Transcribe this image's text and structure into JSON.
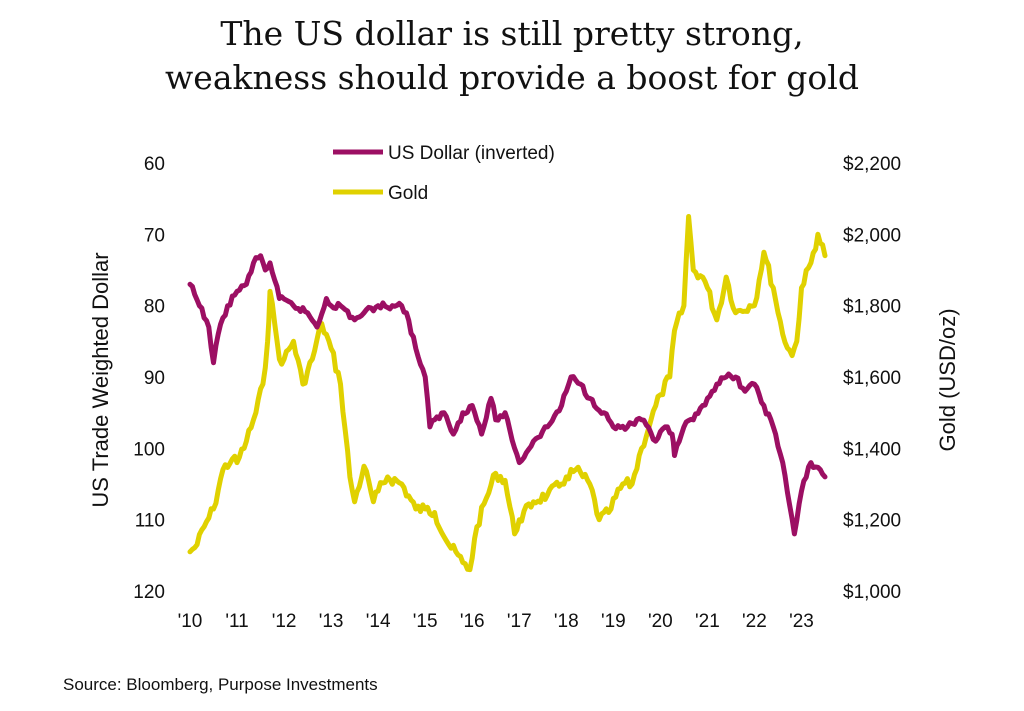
{
  "title": {
    "line1": "The US dollar is still pretty strong,",
    "line2": "weakness should provide a boost for gold"
  },
  "source": "Source: Bloomberg, Purpose Investments",
  "colors": {
    "usd": "#9c0f63",
    "gold": "#e0d100"
  },
  "chart_data": {
    "type": "line",
    "title": "",
    "xlabel": "",
    "ylabel_left": "US Trade Weighted Dollar",
    "ylabel_right": "Gold (USD/oz)",
    "left_axis": {
      "min": 60,
      "max": 120,
      "inverted": true,
      "ticks": [
        "60",
        "70",
        "80",
        "90",
        "100",
        "110",
        "120"
      ]
    },
    "right_axis": {
      "min": 1000,
      "max": 2200,
      "ticks": [
        "$2,200",
        "$2,000",
        "$1,800",
        "$1,600",
        "$1,400",
        "$1,200",
        "$1,000"
      ]
    },
    "x_ticks": [
      "'10",
      "'11",
      "'12",
      "'13",
      "'14",
      "'15",
      "'16",
      "'17",
      "'18",
      "'19",
      "'20",
      "'21",
      "'22",
      "'23"
    ],
    "x_range": [
      2010.0,
      2023.5
    ],
    "legend": [
      "US Dollar (inverted)",
      "Gold"
    ],
    "legend_position": "top-center",
    "grid": false,
    "series": [
      {
        "name": "US Dollar (inverted)",
        "axis": "left",
        "x": [
          2010.0,
          2010.2,
          2010.4,
          2010.5,
          2010.6,
          2010.8,
          2011.0,
          2011.2,
          2011.35,
          2011.5,
          2011.6,
          2011.7,
          2011.9,
          2012.2,
          2012.5,
          2012.7,
          2012.9,
          2013.0,
          2013.2,
          2013.5,
          2013.7,
          2014.0,
          2014.3,
          2014.5,
          2014.6,
          2014.8,
          2015.0,
          2015.1,
          2015.2,
          2015.4,
          2015.6,
          2015.8,
          2016.0,
          2016.2,
          2016.4,
          2016.5,
          2016.7,
          2016.9,
          2017.0,
          2017.3,
          2017.6,
          2017.9,
          2018.0,
          2018.1,
          2018.3,
          2018.5,
          2018.8,
          2019.0,
          2019.3,
          2019.6,
          2019.9,
          2020.1,
          2020.25,
          2020.3,
          2020.5,
          2020.7,
          2020.9,
          2021.0,
          2021.2,
          2021.4,
          2021.6,
          2021.8,
          2022.0,
          2022.2,
          2022.4,
          2022.6,
          2022.75,
          2022.85,
          2023.0,
          2023.2,
          2023.4,
          2023.5
        ],
        "values": [
          77,
          80,
          83,
          88,
          84,
          80,
          78,
          77,
          74,
          73,
          75,
          74,
          79,
          80,
          81,
          83,
          79,
          80,
          80,
          82,
          81,
          80,
          80,
          80,
          81,
          86,
          90,
          97,
          96,
          95,
          98,
          95,
          94,
          98,
          93,
          96,
          95,
          100,
          102,
          99,
          97,
          94,
          92,
          90,
          91,
          93,
          95,
          97,
          97,
          96,
          99,
          97,
          98,
          101,
          97,
          96,
          94,
          93,
          91,
          90,
          90,
          92,
          91,
          94,
          97,
          102,
          108,
          112,
          106,
          102,
          103,
          104
        ]
      },
      {
        "name": "Gold",
        "axis": "right",
        "x": [
          2010.0,
          2010.15,
          2010.3,
          2010.5,
          2010.7,
          2010.9,
          2011.0,
          2011.2,
          2011.4,
          2011.55,
          2011.65,
          2011.7,
          2011.8,
          2011.9,
          2012.0,
          2012.2,
          2012.4,
          2012.6,
          2012.8,
          2013.0,
          2013.2,
          2013.4,
          2013.5,
          2013.7,
          2013.9,
          2014.0,
          2014.2,
          2014.5,
          2014.8,
          2015.0,
          2015.2,
          2015.5,
          2015.8,
          2015.95,
          2016.1,
          2016.3,
          2016.5,
          2016.7,
          2016.9,
          2017.0,
          2017.3,
          2017.6,
          2017.9,
          2018.0,
          2018.2,
          2018.5,
          2018.7,
          2018.9,
          2019.2,
          2019.4,
          2019.6,
          2019.8,
          2020.0,
          2020.2,
          2020.3,
          2020.5,
          2020.6,
          2020.7,
          2020.9,
          2021.0,
          2021.2,
          2021.4,
          2021.6,
          2021.9,
          2022.0,
          2022.2,
          2022.4,
          2022.6,
          2022.8,
          2022.9,
          2023.0,
          2023.2,
          2023.35,
          2023.5
        ],
        "values": [
          1110,
          1130,
          1180,
          1230,
          1340,
          1370,
          1360,
          1420,
          1500,
          1580,
          1700,
          1840,
          1750,
          1650,
          1650,
          1700,
          1580,
          1650,
          1750,
          1680,
          1580,
          1320,
          1250,
          1350,
          1250,
          1280,
          1320,
          1300,
          1230,
          1230,
          1220,
          1130,
          1080,
          1060,
          1180,
          1260,
          1330,
          1310,
          1160,
          1200,
          1250,
          1270,
          1300,
          1320,
          1340,
          1300,
          1200,
          1220,
          1300,
          1300,
          1400,
          1480,
          1550,
          1600,
          1730,
          1800,
          2050,
          1900,
          1880,
          1850,
          1760,
          1880,
          1780,
          1800,
          1800,
          1950,
          1850,
          1720,
          1660,
          1700,
          1850,
          1920,
          2000,
          1940
        ]
      }
    ]
  }
}
